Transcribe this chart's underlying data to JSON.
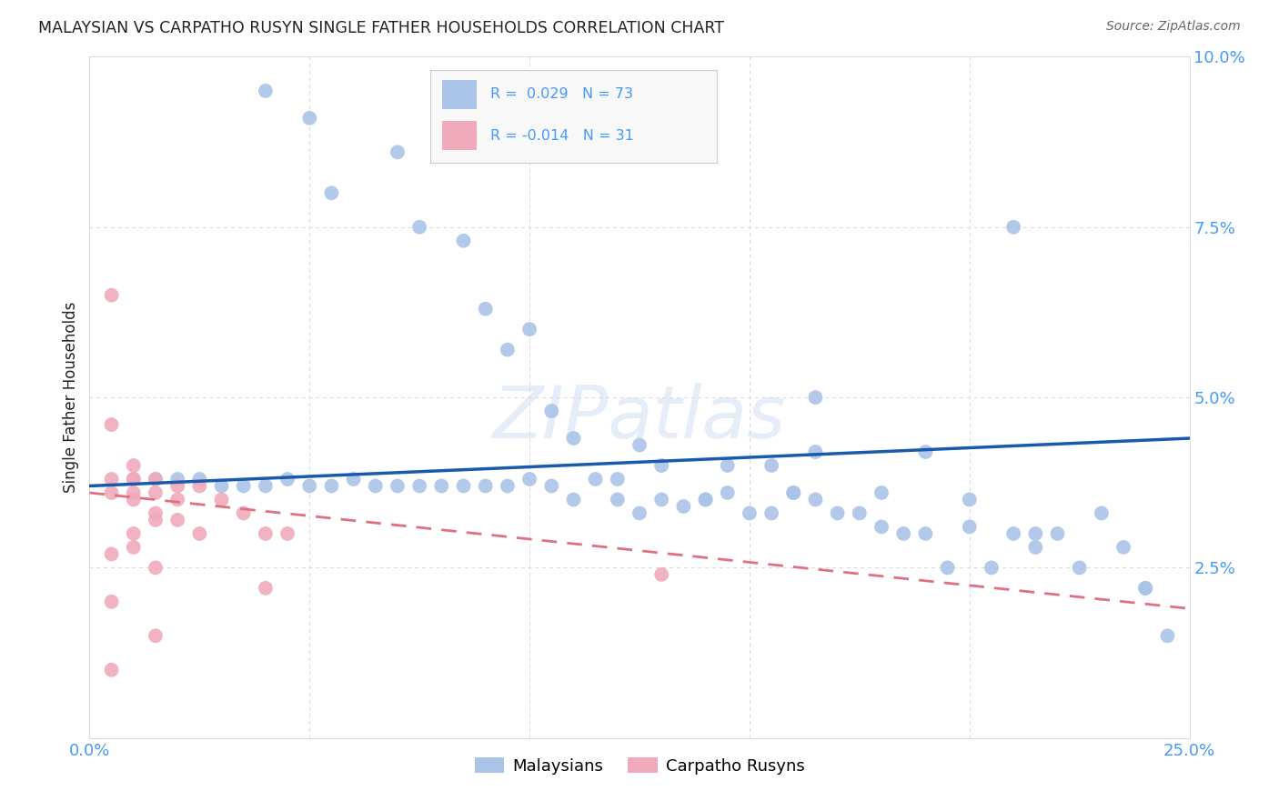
{
  "title": "MALAYSIAN VS CARPATHO RUSYN SINGLE FATHER HOUSEHOLDS CORRELATION CHART",
  "source": "Source: ZipAtlas.com",
  "ylabel": "Single Father Households",
  "xlim": [
    0,
    0.25
  ],
  "ylim": [
    0,
    0.1
  ],
  "xticks": [
    0.0,
    0.05,
    0.1,
    0.15,
    0.2,
    0.25
  ],
  "xticklabels": [
    "0.0%",
    "",
    "",
    "",
    "",
    "25.0%"
  ],
  "yticks": [
    0.0,
    0.025,
    0.05,
    0.075,
    0.1
  ],
  "yticklabels": [
    "",
    "2.5%",
    "5.0%",
    "7.5%",
    "10.0%"
  ],
  "legend_label_blue": "Malaysians",
  "legend_label_pink": "Carpatho Rusyns",
  "watermark": "ZIPatlas",
  "blue_scatter_x": [
    0.04,
    0.05,
    0.07,
    0.055,
    0.075,
    0.085,
    0.09,
    0.095,
    0.1,
    0.105,
    0.11,
    0.12,
    0.125,
    0.13,
    0.14,
    0.145,
    0.155,
    0.16,
    0.165,
    0.18,
    0.19,
    0.2,
    0.215,
    0.24,
    0.245,
    0.015,
    0.02,
    0.025,
    0.03,
    0.035,
    0.04,
    0.045,
    0.05,
    0.055,
    0.06,
    0.065,
    0.07,
    0.075,
    0.08,
    0.085,
    0.09,
    0.095,
    0.1,
    0.105,
    0.11,
    0.115,
    0.12,
    0.125,
    0.13,
    0.135,
    0.14,
    0.145,
    0.15,
    0.155,
    0.16,
    0.165,
    0.17,
    0.175,
    0.18,
    0.185,
    0.19,
    0.195,
    0.2,
    0.205,
    0.21,
    0.215,
    0.22,
    0.225,
    0.23,
    0.235,
    0.24,
    0.165,
    0.21
  ],
  "blue_scatter_y": [
    0.095,
    0.091,
    0.086,
    0.08,
    0.075,
    0.073,
    0.063,
    0.057,
    0.06,
    0.048,
    0.044,
    0.038,
    0.043,
    0.04,
    0.035,
    0.036,
    0.04,
    0.036,
    0.042,
    0.031,
    0.03,
    0.031,
    0.028,
    0.022,
    0.015,
    0.038,
    0.038,
    0.038,
    0.037,
    0.037,
    0.037,
    0.038,
    0.037,
    0.037,
    0.038,
    0.037,
    0.037,
    0.037,
    0.037,
    0.037,
    0.037,
    0.037,
    0.038,
    0.037,
    0.035,
    0.038,
    0.035,
    0.033,
    0.035,
    0.034,
    0.035,
    0.04,
    0.033,
    0.033,
    0.036,
    0.035,
    0.033,
    0.033,
    0.036,
    0.03,
    0.042,
    0.025,
    0.035,
    0.025,
    0.03,
    0.03,
    0.03,
    0.025,
    0.033,
    0.028,
    0.022,
    0.05,
    0.075
  ],
  "pink_scatter_x": [
    0.005,
    0.005,
    0.005,
    0.005,
    0.005,
    0.005,
    0.01,
    0.01,
    0.01,
    0.01,
    0.01,
    0.01,
    0.015,
    0.015,
    0.015,
    0.015,
    0.015,
    0.015,
    0.02,
    0.02,
    0.02,
    0.025,
    0.025,
    0.03,
    0.035,
    0.04,
    0.04,
    0.045,
    0.13,
    0.005,
    0.01
  ],
  "pink_scatter_y": [
    0.065,
    0.046,
    0.038,
    0.036,
    0.027,
    0.02,
    0.04,
    0.038,
    0.036,
    0.035,
    0.03,
    0.028,
    0.038,
    0.036,
    0.033,
    0.032,
    0.025,
    0.015,
    0.037,
    0.035,
    0.032,
    0.037,
    0.03,
    0.035,
    0.033,
    0.03,
    0.022,
    0.03,
    0.024,
    0.01,
    0.038
  ],
  "blue_line_x": [
    0.0,
    0.25
  ],
  "blue_line_y": [
    0.037,
    0.044
  ],
  "pink_line_x": [
    0.0,
    0.25
  ],
  "pink_line_y": [
    0.036,
    0.019
  ],
  "blue_color": "#aac4e8",
  "pink_color": "#f0aabb",
  "blue_line_color": "#1a5aad",
  "pink_line_color": "#e07080",
  "title_color": "#222222",
  "source_color": "#666666",
  "axis_color": "#4499ff",
  "grid_color": "#d8d8d8",
  "background_color": "#ffffff",
  "legend_box_color": "#f8f8f8",
  "legend_box_border": "#cccccc"
}
